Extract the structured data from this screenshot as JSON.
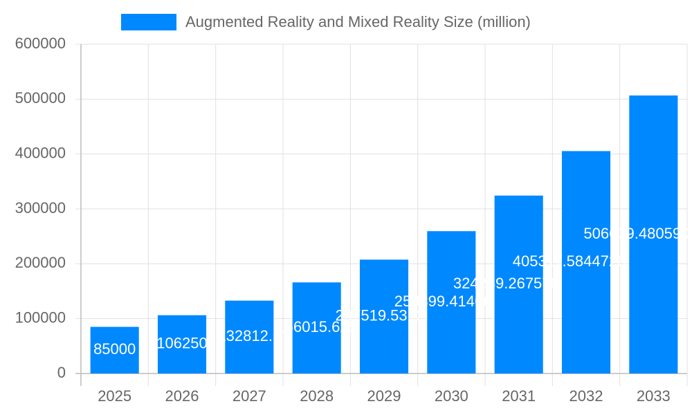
{
  "chart_data": {
    "type": "bar",
    "categories": [
      "2025",
      "2026",
      "2027",
      "2028",
      "2029",
      "2030",
      "2031",
      "2032",
      "2033"
    ],
    "series": [
      {
        "name": "Augmented Reality and Mixed Reality Size (million)",
        "color": "#0088ff",
        "values": [
          85000,
          106250,
          132812.5,
          166015.625,
          207519.53125,
          259399.4140625,
          324249.267578125,
          405311.58447265625,
          506639.4805908203
        ]
      }
    ],
    "ylim": [
      0,
      600000
    ],
    "yticks": [
      0,
      100000,
      200000,
      300000,
      400000,
      500000,
      600000
    ],
    "grid": true,
    "legend": "top"
  }
}
